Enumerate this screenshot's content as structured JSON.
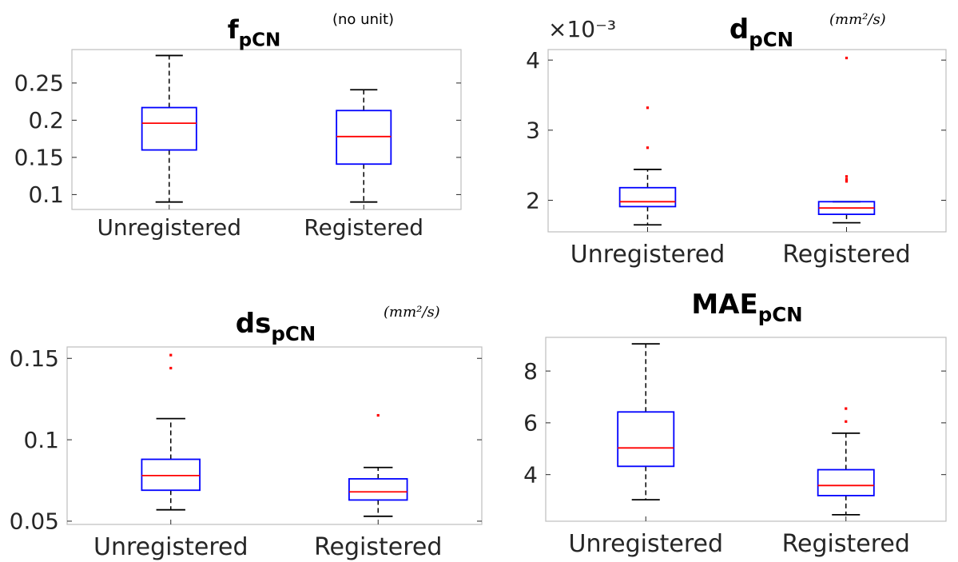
{
  "chart_data": [
    {
      "type": "box",
      "title": "f",
      "title_sub": "pCN",
      "unit": "(no unit)",
      "exponent_label": "",
      "categories": [
        "Unregistered",
        "Registered"
      ],
      "ylim": [
        0.08,
        0.295
      ],
      "yticks": [
        0.1,
        0.15,
        0.2,
        0.25
      ],
      "ytick_labels": [
        "0.1",
        "0.15",
        "0.2",
        "0.25"
      ],
      "boxes": [
        {
          "name": "Unregistered",
          "whisker_low": 0.09,
          "q1": 0.16,
          "median": 0.196,
          "q3": 0.217,
          "whisker_high": 0.287,
          "outliers": []
        },
        {
          "name": "Registered",
          "whisker_low": 0.09,
          "q1": 0.141,
          "median": 0.178,
          "q3": 0.213,
          "whisker_high": 0.241,
          "outliers": []
        }
      ],
      "colors": {
        "box": "#0000ff",
        "median": "#ff0000",
        "whisker": "#000000",
        "outlier": "#ff0000",
        "axis": "#bfbfbf"
      }
    },
    {
      "type": "box",
      "title": "d",
      "title_sub": "pCN",
      "unit": "(mm²/s)",
      "exponent_label": "×10⁻³",
      "categories": [
        "Unregistered",
        "Registered"
      ],
      "ylim": [
        1.55,
        4.15
      ],
      "yticks": [
        2,
        3,
        4
      ],
      "ytick_labels": [
        "2",
        "3",
        "4"
      ],
      "boxes": [
        {
          "name": "Unregistered",
          "whisker_low": 1.65,
          "q1": 1.91,
          "median": 1.98,
          "q3": 2.18,
          "whisker_high": 2.44,
          "outliers": [
            2.75,
            3.32
          ]
        },
        {
          "name": "Registered",
          "whisker_low": 1.68,
          "q1": 1.8,
          "median": 1.89,
          "q3": 1.98,
          "whisker_high": 1.98,
          "outliers": [
            2.27,
            2.3,
            2.34,
            4.03
          ]
        }
      ],
      "colors": {
        "box": "#0000ff",
        "median": "#ff0000",
        "whisker": "#000000",
        "outlier": "#ff0000",
        "axis": "#bfbfbf"
      }
    },
    {
      "type": "box",
      "title": "ds",
      "title_sub": "pCN",
      "unit": "(mm²/s)",
      "exponent_label": "",
      "categories": [
        "Unregistered",
        "Registered"
      ],
      "ylim": [
        0.048,
        0.157
      ],
      "yticks": [
        0.05,
        0.1,
        0.15
      ],
      "ytick_labels": [
        "0.05",
        "0.1",
        "0.15"
      ],
      "boxes": [
        {
          "name": "Unregistered",
          "whisker_low": 0.057,
          "q1": 0.069,
          "median": 0.078,
          "q3": 0.088,
          "whisker_high": 0.113,
          "outliers": [
            0.144,
            0.152
          ]
        },
        {
          "name": "Registered",
          "whisker_low": 0.053,
          "q1": 0.063,
          "median": 0.068,
          "q3": 0.076,
          "whisker_high": 0.083,
          "outliers": [
            0.115
          ]
        }
      ],
      "colors": {
        "box": "#0000ff",
        "median": "#ff0000",
        "whisker": "#000000",
        "outlier": "#ff0000",
        "axis": "#bfbfbf"
      }
    },
    {
      "type": "box",
      "title": "MAE",
      "title_sub": "pCN",
      "unit": "",
      "exponent_label": "",
      "categories": [
        "Unregistered",
        "Registered"
      ],
      "ylim": [
        2.2,
        9.3
      ],
      "yticks": [
        4,
        6,
        8
      ],
      "ytick_labels": [
        "4",
        "6",
        "8"
      ],
      "boxes": [
        {
          "name": "Unregistered",
          "whisker_low": 3.03,
          "q1": 4.32,
          "median": 5.03,
          "q3": 6.42,
          "whisker_high": 9.05,
          "outliers": []
        },
        {
          "name": "Registered",
          "whisker_low": 2.45,
          "q1": 3.19,
          "median": 3.58,
          "q3": 4.19,
          "whisker_high": 5.6,
          "outliers": [
            6.05,
            6.55
          ]
        }
      ],
      "colors": {
        "box": "#0000ff",
        "median": "#ff0000",
        "whisker": "#000000",
        "outlier": "#ff0000",
        "axis": "#bfbfbf"
      }
    }
  ]
}
